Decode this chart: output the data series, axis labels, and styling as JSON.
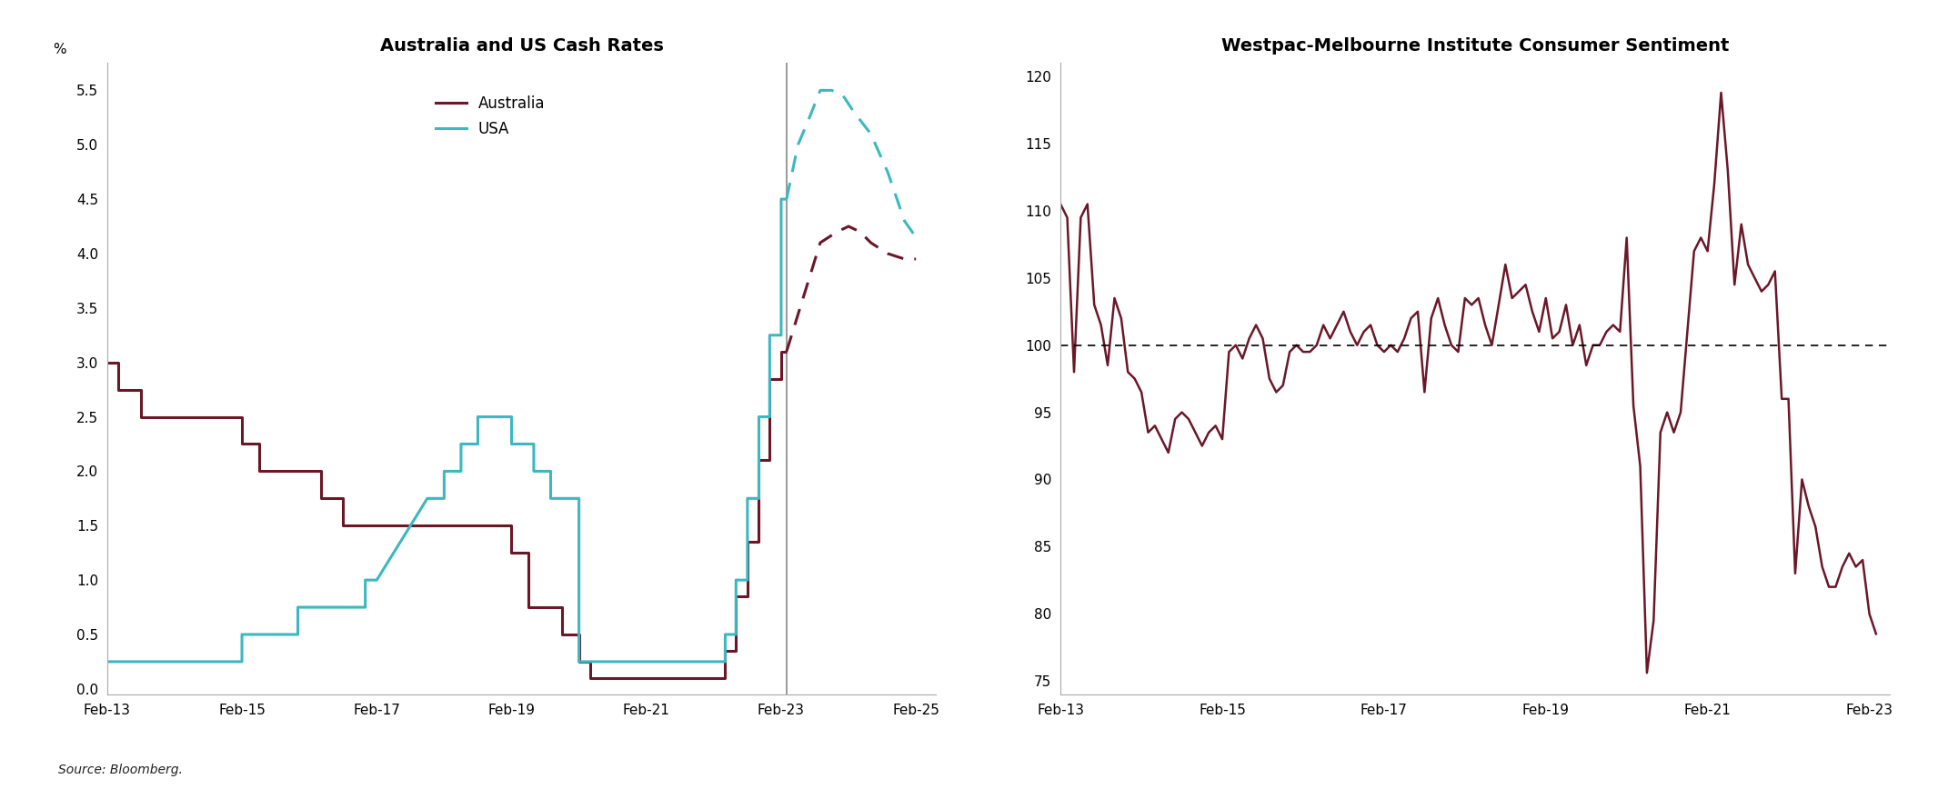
{
  "chart1_title": "Australia and US Cash Rates",
  "chart2_title": "Westpac-Melbourne Institute Consumer Sentiment",
  "source_text": "Source: Bloomberg.",
  "australia_color": "#6B1728",
  "usa_color": "#3BB8C0",
  "sentiment_color": "#6B1728",
  "aus_solid_x": [
    2013.0,
    2013.17,
    2013.17,
    2013.5,
    2013.5,
    2013.83,
    2013.83,
    2014.17,
    2014.17,
    2014.5,
    2014.5,
    2014.83,
    2014.83,
    2015.0,
    2015.0,
    2015.25,
    2015.25,
    2015.83,
    2015.83,
    2016.17,
    2016.17,
    2016.5,
    2016.5,
    2016.83,
    2016.83,
    2017.0,
    2017.0,
    2019.0,
    2019.0,
    2019.25,
    2019.25,
    2019.75,
    2019.75,
    2020.0,
    2020.0,
    2020.17,
    2020.17,
    2020.5,
    2020.5,
    2022.0,
    2022.0,
    2022.17,
    2022.17,
    2022.33,
    2022.33,
    2022.5,
    2022.5,
    2022.67,
    2022.67,
    2022.83,
    2022.83,
    2023.0,
    2023.0,
    2023.08
  ],
  "aus_solid_y": [
    3.0,
    3.0,
    2.75,
    2.75,
    2.5,
    2.5,
    2.5,
    2.5,
    2.5,
    2.5,
    2.5,
    2.5,
    2.5,
    2.5,
    2.25,
    2.25,
    2.0,
    2.0,
    2.0,
    2.0,
    1.75,
    1.75,
    1.5,
    1.5,
    1.5,
    1.5,
    1.5,
    1.5,
    1.25,
    1.25,
    0.75,
    0.75,
    0.5,
    0.5,
    0.25,
    0.25,
    0.1,
    0.1,
    0.1,
    0.1,
    0.1,
    0.1,
    0.35,
    0.35,
    0.85,
    0.85,
    1.35,
    1.35,
    2.1,
    2.1,
    2.85,
    2.85,
    3.1,
    3.1
  ],
  "aus_dashed_x": [
    2023.08,
    2023.33,
    2023.58,
    2023.83,
    2024.0,
    2024.17,
    2024.33,
    2024.58,
    2024.83,
    2025.0
  ],
  "aus_dashed_y": [
    3.1,
    3.6,
    4.1,
    4.2,
    4.25,
    4.2,
    4.1,
    4.0,
    3.95,
    3.95
  ],
  "usa_solid_x": [
    2013.0,
    2015.0,
    2015.0,
    2015.25,
    2015.25,
    2015.83,
    2015.83,
    2016.17,
    2016.17,
    2016.83,
    2016.83,
    2017.0,
    2017.0,
    2017.25,
    2017.25,
    2017.5,
    2017.5,
    2017.75,
    2017.75,
    2018.0,
    2018.0,
    2018.25,
    2018.25,
    2018.5,
    2018.5,
    2018.75,
    2018.75,
    2019.0,
    2019.0,
    2019.33,
    2019.33,
    2019.58,
    2019.58,
    2019.83,
    2019.83,
    2020.0,
    2020.0,
    2020.17,
    2020.17,
    2021.0,
    2021.0,
    2022.17,
    2022.17,
    2022.33,
    2022.33,
    2022.5,
    2022.5,
    2022.67,
    2022.67,
    2022.83,
    2022.83,
    2023.0,
    2023.0,
    2023.08
  ],
  "usa_solid_y": [
    0.25,
    0.25,
    0.5,
    0.5,
    0.5,
    0.5,
    0.75,
    0.75,
    0.75,
    0.75,
    1.0,
    1.0,
    1.0,
    1.25,
    1.25,
    1.5,
    1.5,
    1.75,
    1.75,
    1.75,
    2.0,
    2.0,
    2.25,
    2.25,
    2.5,
    2.5,
    2.5,
    2.5,
    2.25,
    2.25,
    2.0,
    2.0,
    1.75,
    1.75,
    1.75,
    1.75,
    0.25,
    0.25,
    0.25,
    0.25,
    0.25,
    0.25,
    0.5,
    0.5,
    1.0,
    1.0,
    1.75,
    1.75,
    2.5,
    2.5,
    3.25,
    3.25,
    4.5,
    4.5
  ],
  "usa_dashed_x": [
    2023.08,
    2023.25,
    2023.42,
    2023.58,
    2023.75,
    2023.92,
    2024.08,
    2024.33,
    2024.58,
    2024.83,
    2025.0
  ],
  "usa_dashed_y": [
    4.5,
    5.0,
    5.25,
    5.5,
    5.5,
    5.45,
    5.3,
    5.1,
    4.75,
    4.3,
    4.15
  ],
  "vline_x": 2023.08,
  "cash_xlim": [
    2013.0,
    2025.3
  ],
  "cash_x_ticks": [
    2013,
    2015,
    2017,
    2019,
    2021,
    2023,
    2025
  ],
  "cash_x_labels": [
    "Feb-13",
    "Feb-15",
    "Feb-17",
    "Feb-19",
    "Feb-21",
    "Feb-23",
    "Feb-25"
  ],
  "cash_ylim": [
    -0.05,
    5.75
  ],
  "cash_yticks": [
    0.0,
    0.5,
    1.0,
    1.5,
    2.0,
    2.5,
    3.0,
    3.5,
    4.0,
    4.5,
    5.0,
    5.5
  ],
  "cash_ylabel": "%",
  "sentiment_x": [
    2013.0,
    2013.083,
    2013.167,
    2013.25,
    2013.333,
    2013.417,
    2013.5,
    2013.583,
    2013.667,
    2013.75,
    2013.833,
    2013.917,
    2014.0,
    2014.083,
    2014.167,
    2014.25,
    2014.333,
    2014.417,
    2014.5,
    2014.583,
    2014.667,
    2014.75,
    2014.833,
    2014.917,
    2015.0,
    2015.083,
    2015.167,
    2015.25,
    2015.333,
    2015.417,
    2015.5,
    2015.583,
    2015.667,
    2015.75,
    2015.833,
    2015.917,
    2016.0,
    2016.083,
    2016.167,
    2016.25,
    2016.333,
    2016.417,
    2016.5,
    2016.583,
    2016.667,
    2016.75,
    2016.833,
    2016.917,
    2017.0,
    2017.083,
    2017.167,
    2017.25,
    2017.333,
    2017.417,
    2017.5,
    2017.583,
    2017.667,
    2017.75,
    2017.833,
    2017.917,
    2018.0,
    2018.083,
    2018.167,
    2018.25,
    2018.333,
    2018.417,
    2018.5,
    2018.583,
    2018.667,
    2018.75,
    2018.833,
    2018.917,
    2019.0,
    2019.083,
    2019.167,
    2019.25,
    2019.333,
    2019.417,
    2019.5,
    2019.583,
    2019.667,
    2019.75,
    2019.833,
    2019.917,
    2020.0,
    2020.083,
    2020.167,
    2020.25,
    2020.333,
    2020.417,
    2020.5,
    2020.583,
    2020.667,
    2020.75,
    2020.833,
    2020.917,
    2021.0,
    2021.083,
    2021.167,
    2021.25,
    2021.333,
    2021.417,
    2021.5,
    2021.583,
    2021.667,
    2021.75,
    2021.833,
    2021.917,
    2022.0,
    2022.083,
    2022.167,
    2022.25,
    2022.333,
    2022.417,
    2022.5,
    2022.583,
    2022.667,
    2022.75,
    2022.833,
    2022.917,
    2023.0,
    2023.083
  ],
  "sentiment_y": [
    110.5,
    109.5,
    98.0,
    109.5,
    110.5,
    103.0,
    101.5,
    98.5,
    103.5,
    102.0,
    98.0,
    97.5,
    96.5,
    93.5,
    94.0,
    93.0,
    92.0,
    94.5,
    95.0,
    94.5,
    93.5,
    92.5,
    93.5,
    94.0,
    93.0,
    99.5,
    100.0,
    99.0,
    100.5,
    101.5,
    100.5,
    97.5,
    96.5,
    97.0,
    99.5,
    100.0,
    99.5,
    99.5,
    100.0,
    101.5,
    100.5,
    101.5,
    102.5,
    101.0,
    100.0,
    101.0,
    101.5,
    100.0,
    99.5,
    100.0,
    99.5,
    100.5,
    102.0,
    102.5,
    96.5,
    102.0,
    103.5,
    101.5,
    100.0,
    99.5,
    103.5,
    103.0,
    103.5,
    101.5,
    100.0,
    103.0,
    106.0,
    103.5,
    104.0,
    104.5,
    102.5,
    101.0,
    103.5,
    100.5,
    101.0,
    103.0,
    100.0,
    101.5,
    98.5,
    100.0,
    100.0,
    101.0,
    101.5,
    101.0,
    108.0,
    95.5,
    91.0,
    75.6,
    79.5,
    93.5,
    95.0,
    93.5,
    95.0,
    101.0,
    107.0,
    108.0,
    107.0,
    112.0,
    118.8,
    113.0,
    104.5,
    109.0,
    106.0,
    105.0,
    104.0,
    104.5,
    105.5,
    96.0,
    96.0,
    83.0,
    90.0,
    88.0,
    86.5,
    83.5,
    82.0,
    82.0,
    83.5,
    84.5,
    83.5,
    84.0,
    80.0,
    78.5
  ],
  "sentiment_xlim": [
    2013.0,
    2023.25
  ],
  "sentiment_x_ticks": [
    2013,
    2015,
    2017,
    2019,
    2021,
    2023
  ],
  "sentiment_x_labels": [
    "Feb-13",
    "Feb-15",
    "Feb-17",
    "Feb-19",
    "Feb-21",
    "Feb-23"
  ],
  "sentiment_ylim": [
    74,
    121
  ],
  "sentiment_yticks": [
    75,
    80,
    85,
    90,
    95,
    100,
    105,
    110,
    115,
    120
  ],
  "sentiment_hline": 100
}
